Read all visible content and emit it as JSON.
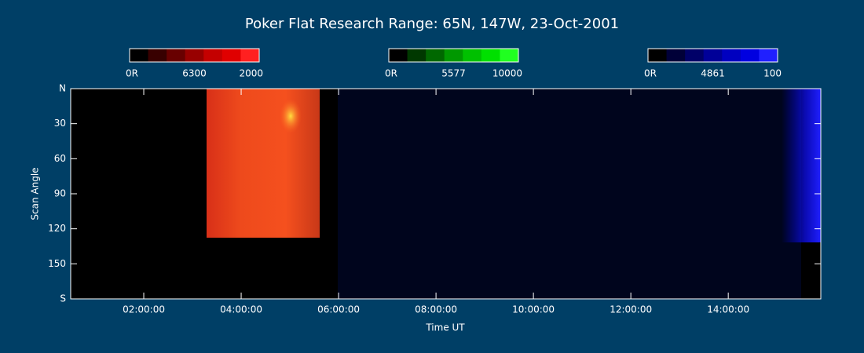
{
  "chart_data": {
    "type": "keogram",
    "title": "Poker Flat Research Range: 65N, 147W, 23-Oct-2001",
    "x_label": "Time UT",
    "y_label": "Scan Angle",
    "xlim": [
      0.5,
      15.9
    ],
    "xticks": [
      {
        "value": 2,
        "label": "02:00:00"
      },
      {
        "value": 4,
        "label": "04:00:00"
      },
      {
        "value": 6,
        "label": "06:00:00"
      },
      {
        "value": 8,
        "label": "08:00:00"
      },
      {
        "value": 10,
        "label": "10:00:00"
      },
      {
        "value": 12,
        "label": "12:00:00"
      },
      {
        "value": 14,
        "label": "14:00:00"
      }
    ],
    "ylim": [
      0,
      180
    ],
    "yticks": [
      {
        "value": 0,
        "label": "N"
      },
      30,
      60,
      90,
      120,
      150,
      {
        "value": 180,
        "label": "S"
      }
    ],
    "colorbars": [
      {
        "labels": [
          "0R",
          "6300",
          "2000"
        ],
        "colors": [
          "#000000",
          "#380000",
          "#680000",
          "#980000",
          "#c40000",
          "#e00000",
          "#ff2020"
        ]
      },
      {
        "labels": [
          "0R",
          "5577",
          "10000"
        ],
        "colors": [
          "#000000",
          "#003800",
          "#006800",
          "#009800",
          "#00c000",
          "#00e000",
          "#20ff20"
        ]
      },
      {
        "labels": [
          "0R",
          "4861",
          "100"
        ],
        "colors": [
          "#000000",
          "#000038",
          "#000068",
          "#000098",
          "#0000c0",
          "#0000e0",
          "#2020ff"
        ]
      }
    ]
  }
}
